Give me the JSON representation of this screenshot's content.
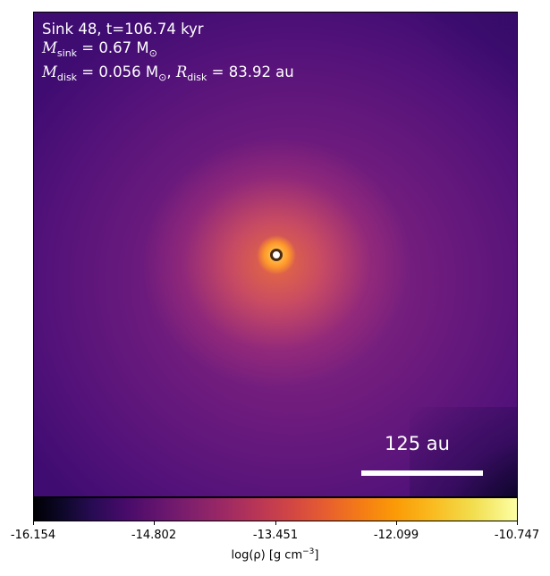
{
  "panel": {
    "line1": "Sink 48, t=106.74 kyr",
    "m_sink_symbol": "M",
    "m_sink_sub": "sink",
    "m_sink_value": " = 0.67 M",
    "m_sink_unit_sub": "⊙",
    "m_disk_symbol": "M",
    "m_disk_sub": "disk",
    "m_disk_value": " = 0.056 M",
    "m_disk_unit_sub": "⊙",
    "r_disk_sep": ", ",
    "r_disk_symbol": "R",
    "r_disk_sub": "disk",
    "r_disk_value": " = 83.92 au"
  },
  "scalebar": {
    "label": "125 au"
  },
  "colorbar": {
    "ticks": [
      "-16.154",
      "-14.802",
      "-13.451",
      "-12.099",
      "-10.747"
    ],
    "label": "log(ρ) [g cm",
    "label_exp": "−3",
    "label_end": "]",
    "colormap": "inferno"
  },
  "colors": {
    "text_on_plot": "#ffffff",
    "sink_marker_fill": "#ffffff",
    "sink_marker_edge": "#4a2a10"
  }
}
